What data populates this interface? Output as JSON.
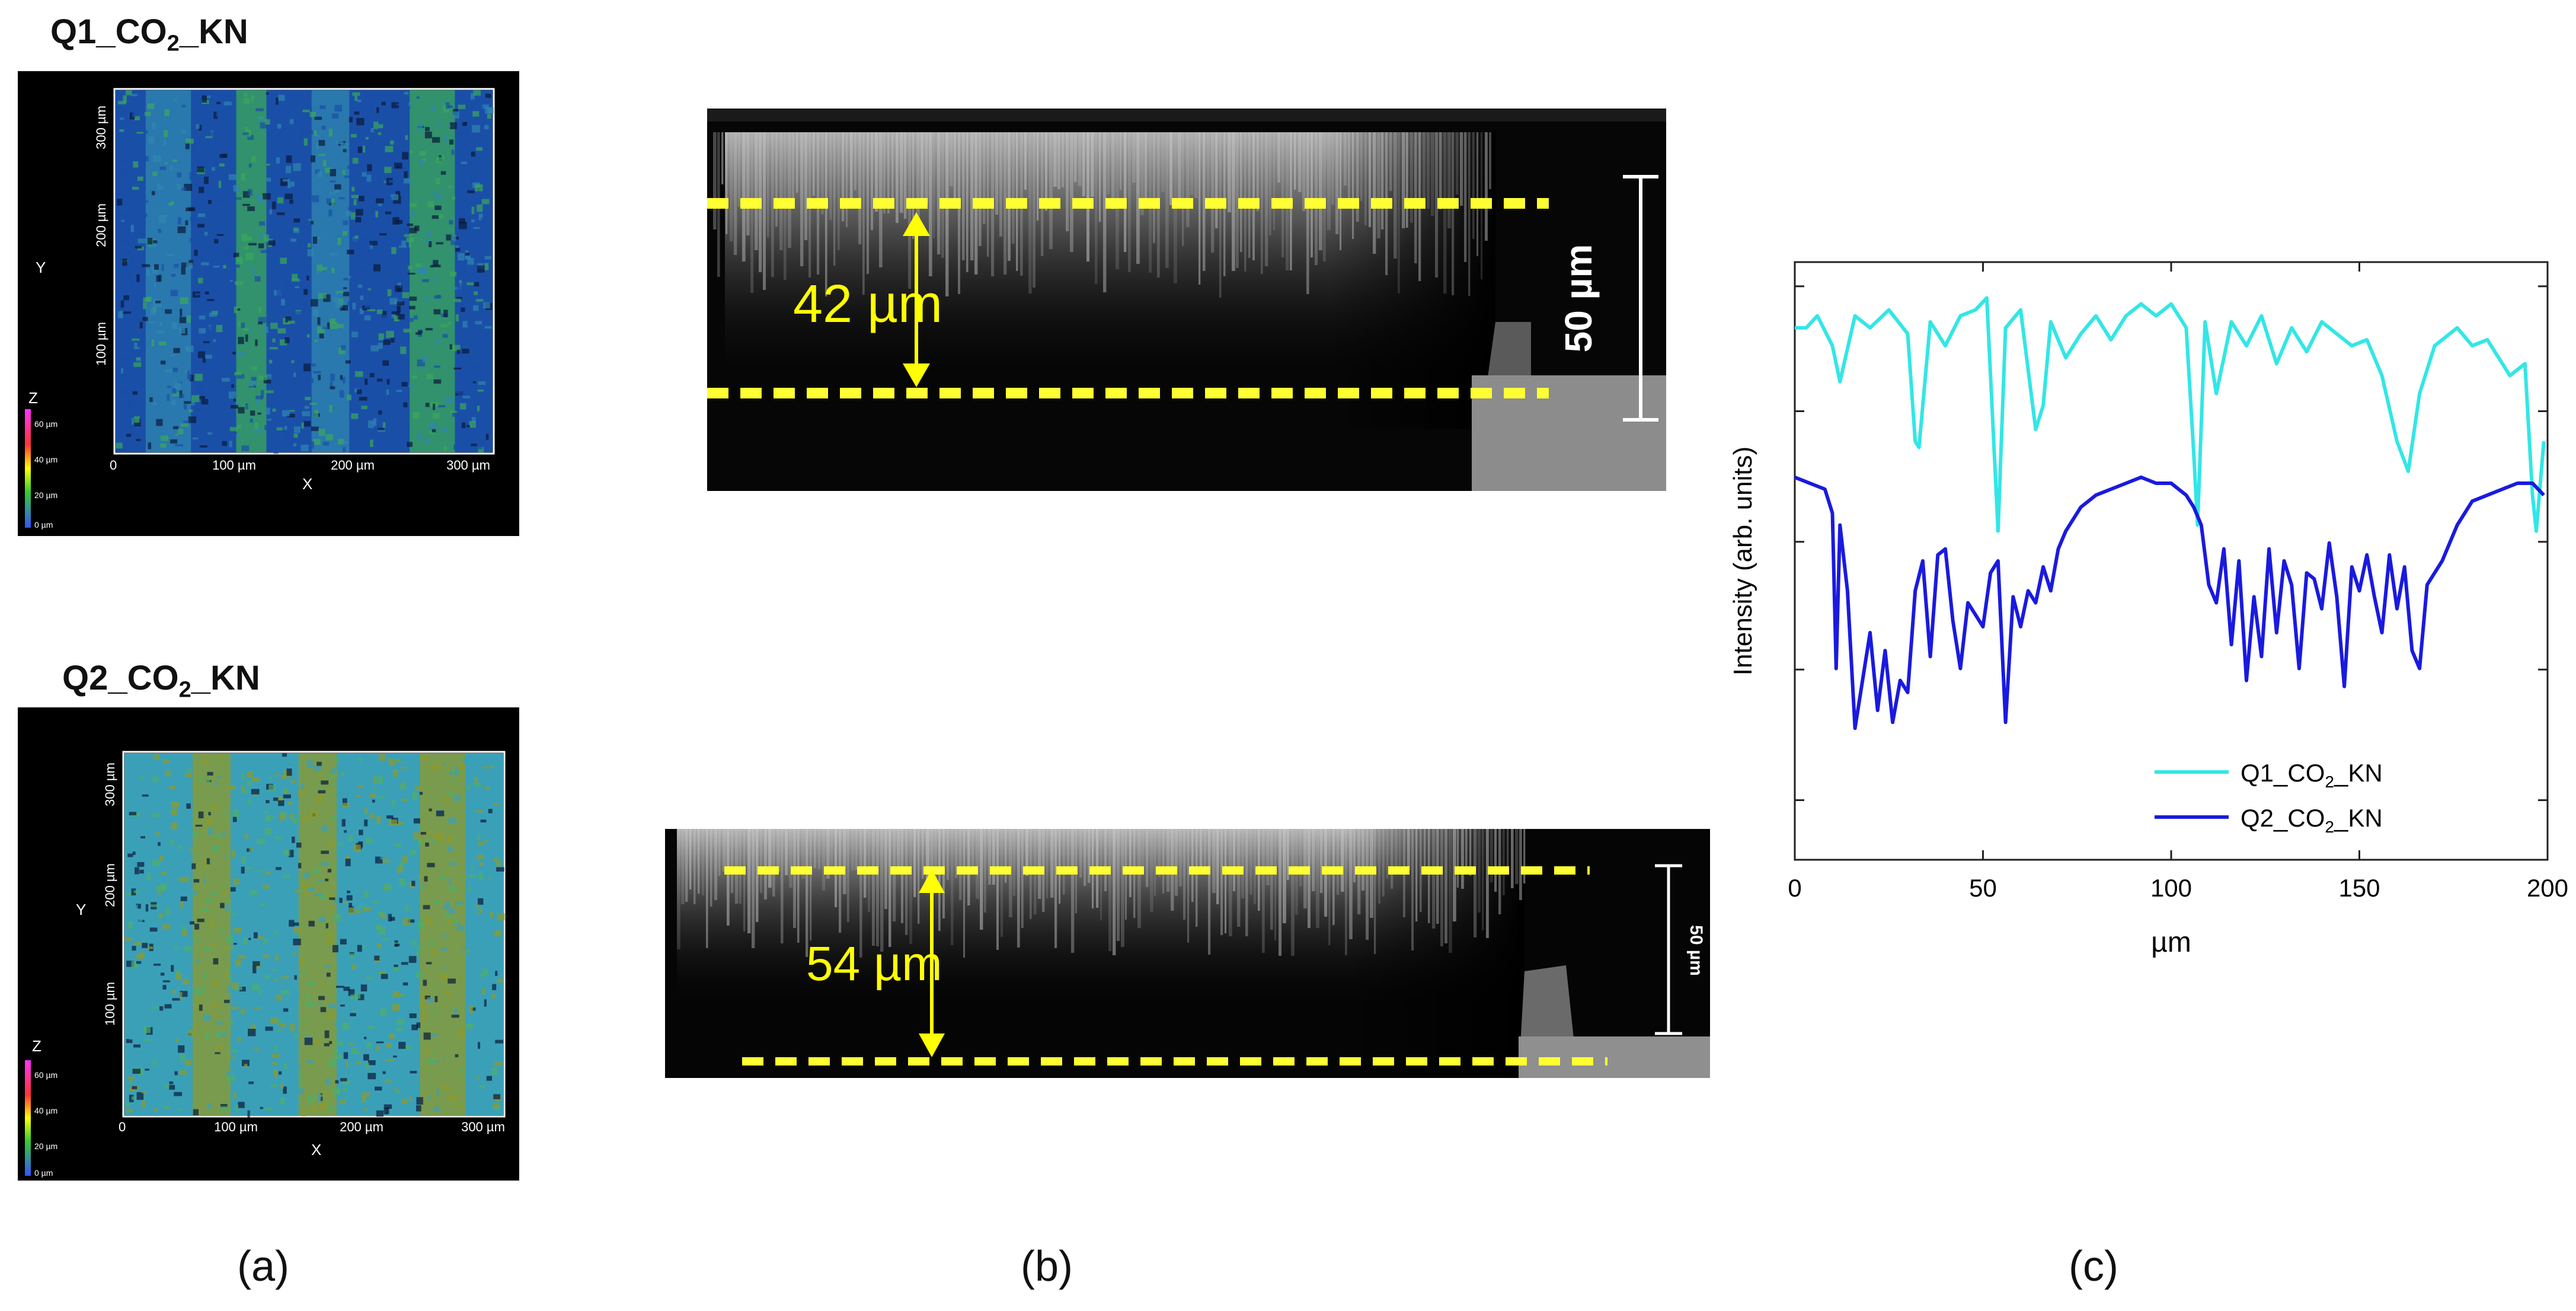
{
  "panel_a": {
    "caption": "(a)",
    "images": [
      {
        "title_main": "Q1_CO",
        "title_sub": "2",
        "title_tail": "_KN",
        "y_ticks": [
          "300 µm",
          "200 µm",
          "100 µm",
          "0"
        ],
        "x_ticks": [
          "100 µm",
          "200 µm",
          "300 µm"
        ],
        "x_label": "X",
        "y_label": "Y",
        "colorbar_label": "Z",
        "colorbar_ticks": [
          "60 µm",
          "40 µm",
          "20 µm",
          "0 µm"
        ],
        "colors": {
          "base": "#1a4fa8",
          "mid": "#2f86b0",
          "high": "#3aa85a"
        }
      },
      {
        "title_main": "Q2_CO",
        "title_sub": "2",
        "title_tail": "_KN",
        "y_ticks": [
          "300 µm",
          "200 µm",
          "100 µm",
          "0"
        ],
        "x_ticks": [
          "100 µm",
          "200 µm",
          "300 µm"
        ],
        "x_label": "X",
        "y_label": "Y",
        "colorbar_label": "Z",
        "colorbar_ticks": [
          "60 µm",
          "40 µm",
          "20 µm",
          "0 µm"
        ],
        "colors": {
          "base": "#3aa0b8",
          "mid": "#4fae6a",
          "high": "#8f9a2a"
        }
      }
    ]
  },
  "panel_b": {
    "caption": "(b)",
    "top": {
      "thickness_label": "42 µm",
      "scale_label": "50 µm"
    },
    "bottom": {
      "thickness_label": "54 µm",
      "scale_label": "50 µm"
    },
    "colors": {
      "guide": "#ffff33",
      "annotation": "#ffff00"
    }
  },
  "panel_c": {
    "caption": "(c)",
    "chart_data": {
      "type": "line",
      "xlabel": "µm",
      "ylabel": "Intensity (arb. units)",
      "xlim": [
        0,
        200
      ],
      "ylim": [
        0,
        10
      ],
      "x_ticks": [
        "0",
        "50",
        "100",
        "150",
        "200"
      ],
      "legend_position": "bottom-right",
      "series": [
        {
          "name": "Q1_CO2_KN",
          "name_main": "Q1_CO",
          "name_sub": "2",
          "name_tail": "_KN",
          "color": "#33e6e6",
          "x": [
            0,
            3,
            6,
            10,
            12,
            16,
            20,
            25,
            30,
            32,
            33,
            36,
            40,
            44,
            48,
            51,
            53,
            54,
            56,
            60,
            64,
            66,
            68,
            72,
            76,
            80,
            84,
            88,
            92,
            96,
            100,
            104,
            106,
            107,
            109,
            112,
            116,
            120,
            124,
            128,
            132,
            136,
            140,
            144,
            148,
            152,
            156,
            160,
            163,
            166,
            170,
            176,
            180,
            184,
            190,
            194,
            196,
            197,
            199
          ],
          "y": [
            8.9,
            8.9,
            9.1,
            8.6,
            8.0,
            9.1,
            8.9,
            9.2,
            8.8,
            7.0,
            6.9,
            9.0,
            8.6,
            9.1,
            9.2,
            9.4,
            6.8,
            5.5,
            8.9,
            9.2,
            7.2,
            7.6,
            9.0,
            8.4,
            8.8,
            9.1,
            8.7,
            9.1,
            9.3,
            9.1,
            9.3,
            8.9,
            6.8,
            5.6,
            9.0,
            7.8,
            9.0,
            8.6,
            9.1,
            8.3,
            8.9,
            8.5,
            9.0,
            8.8,
            8.6,
            8.7,
            8.1,
            7.0,
            6.5,
            7.8,
            8.6,
            8.9,
            8.6,
            8.7,
            8.1,
            8.3,
            6.1,
            5.5,
            7.0
          ]
        },
        {
          "name": "Q2_CO2_KN",
          "name_main": "Q2_CO",
          "name_sub": "2",
          "name_tail": "_KN",
          "color": "#1a1ae0",
          "x": [
            0,
            4,
            8,
            10,
            11,
            12,
            14,
            16,
            18,
            20,
            22,
            24,
            26,
            28,
            30,
            32,
            34,
            36,
            38,
            40,
            42,
            44,
            46,
            48,
            50,
            52,
            54,
            56,
            58,
            60,
            62,
            64,
            66,
            68,
            70,
            72,
            76,
            80,
            84,
            88,
            92,
            96,
            100,
            104,
            106,
            108,
            110,
            112,
            114,
            116,
            118,
            120,
            122,
            124,
            126,
            128,
            130,
            132,
            134,
            136,
            138,
            140,
            142,
            144,
            146,
            148,
            150,
            152,
            154,
            156,
            158,
            160,
            162,
            164,
            166,
            168,
            172,
            176,
            180,
            184,
            188,
            192,
            196,
            199
          ],
          "y": [
            6.4,
            6.3,
            6.2,
            5.8,
            3.2,
            5.6,
            4.5,
            2.2,
            3.0,
            3.8,
            2.5,
            3.5,
            2.3,
            3.0,
            2.8,
            4.5,
            5.0,
            3.4,
            5.1,
            5.2,
            4.0,
            3.2,
            4.3,
            4.1,
            3.9,
            4.8,
            5.0,
            2.3,
            4.4,
            3.9,
            4.5,
            4.3,
            4.9,
            4.5,
            5.2,
            5.5,
            5.9,
            6.1,
            6.2,
            6.3,
            6.4,
            6.3,
            6.3,
            6.1,
            5.9,
            5.6,
            4.6,
            4.3,
            5.2,
            3.6,
            5.0,
            3.0,
            4.4,
            3.4,
            5.2,
            3.8,
            5.0,
            4.6,
            3.2,
            4.8,
            4.7,
            4.2,
            5.3,
            4.4,
            2.9,
            4.9,
            4.5,
            5.1,
            4.4,
            3.8,
            5.1,
            4.2,
            4.9,
            3.5,
            3.2,
            4.6,
            5.0,
            5.6,
            6.0,
            6.1,
            6.2,
            6.3,
            6.3,
            6.1
          ]
        }
      ]
    }
  }
}
